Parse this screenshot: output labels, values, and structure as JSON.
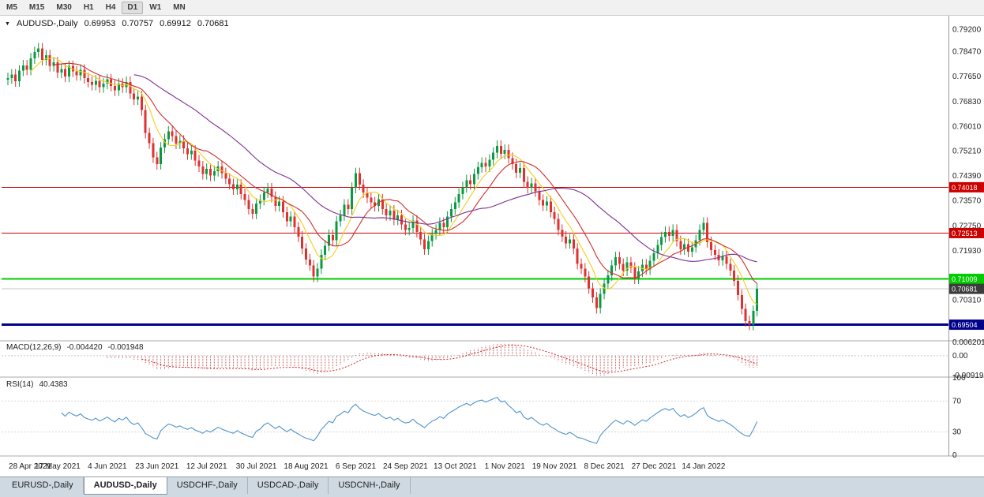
{
  "toolbar": {
    "timeframes": [
      "M5",
      "M15",
      "M30",
      "H1",
      "H4",
      "D1",
      "W1",
      "MN"
    ],
    "active": "D1"
  },
  "chart_header": {
    "collapse_icon": "▼",
    "symbol": "AUDUSD-,Daily",
    "open": "0.69953",
    "high": "0.70757",
    "low": "0.69912",
    "close": "0.70681"
  },
  "price_axis": {
    "ticks": [
      {
        "v": 0.792,
        "label": "0.79200"
      },
      {
        "v": 0.7847,
        "label": "0.78470"
      },
      {
        "v": 0.7765,
        "label": "0.77650"
      },
      {
        "v": 0.7683,
        "label": "0.76830"
      },
      {
        "v": 0.7601,
        "label": "0.76010"
      },
      {
        "v": 0.7521,
        "label": "0.75210"
      },
      {
        "v": 0.7439,
        "label": "0.74390"
      },
      {
        "v": 0.7357,
        "label": "0.73570"
      },
      {
        "v": 0.7275,
        "label": "0.72750"
      },
      {
        "v": 0.7193,
        "label": "0.71930"
      },
      {
        "v": 0.7106,
        "label": "0.71060"
      },
      {
        "v": 0.7031,
        "label": "0.70310"
      }
    ]
  },
  "levels": [
    {
      "value": 0.74018,
      "label": "0.74018",
      "color": "#cc0000",
      "lw": 1
    },
    {
      "value": 0.72513,
      "label": "0.72513",
      "color": "#cc0000",
      "lw": 1
    },
    {
      "value": 0.71009,
      "label": "0.71009",
      "color": "#00cc00",
      "lw": 2
    },
    {
      "value": 0.69504,
      "label": "0.69504",
      "color": "#00008b",
      "lw": 3
    }
  ],
  "current_price": {
    "value": 0.70681,
    "label": "0.70681",
    "bg": "#3c3c3c",
    "line_color": "#c4c4c4"
  },
  "indicators": {
    "macd": {
      "name": "MACD(12,26,9)",
      "value_main": "-0.004420",
      "value_signal": "-0.001948",
      "fast": 12,
      "slow": 26,
      "signal_period": 9,
      "ylim": [
        -0.0095,
        0.0065
      ],
      "hist_color": "#c05050",
      "signal_color": "#cc2929",
      "axis_ticks": [
        {
          "v": 0.006201,
          "label": "0.006201"
        },
        {
          "v": 0,
          "label": "0.00"
        },
        {
          "v": -0.009197,
          "label": "-0.009197"
        }
      ]
    },
    "rsi": {
      "name": "RSI(14)",
      "value": "40.4383",
      "period": 14,
      "color": "#4f94cd",
      "levels": [
        70,
        30
      ],
      "axis_ticks": [
        {
          "v": 100,
          "label": "100"
        },
        {
          "v": 70,
          "label": "70"
        },
        {
          "v": 30,
          "label": "30"
        },
        {
          "v": 0,
          "label": "0"
        }
      ]
    },
    "moving_averages": [
      {
        "period": 7,
        "color": "#f2cf1d"
      },
      {
        "period": 13,
        "color": "#cf2e2e"
      },
      {
        "period": 34,
        "color": "#7b2f90"
      }
    ]
  },
  "chart_data": {
    "type": "candlestick",
    "symbol": "AUDUSD",
    "timeframe": "Daily",
    "title": "AUDUSD-,Daily",
    "ylim": [
      0.69,
      0.796
    ],
    "wick": 0.0018,
    "up_color": "#0a9b42",
    "down_color": "#e03030",
    "last_bar": {
      "open": 0.69953,
      "high": 0.70757,
      "low": 0.69912,
      "close": 0.70681
    },
    "closes": [
      0.776,
      0.7772,
      0.775,
      0.7785,
      0.7802,
      0.7788,
      0.7825,
      0.7846,
      0.7858,
      0.782,
      0.7835,
      0.78,
      0.7812,
      0.7778,
      0.779,
      0.7765,
      0.78,
      0.7782,
      0.777,
      0.7788,
      0.776,
      0.7748,
      0.7738,
      0.7752,
      0.773,
      0.7742,
      0.7756,
      0.7735,
      0.772,
      0.7742,
      0.773,
      0.7748,
      0.771,
      0.769,
      0.77,
      0.7655,
      0.758,
      0.7546,
      0.75,
      0.7478,
      0.7532,
      0.756,
      0.7585,
      0.757,
      0.7545,
      0.7555,
      0.753,
      0.751,
      0.7522,
      0.749,
      0.747,
      0.7445,
      0.7462,
      0.744,
      0.7455,
      0.747,
      0.7448,
      0.743,
      0.7412,
      0.7395,
      0.741,
      0.738,
      0.736,
      0.733,
      0.7315,
      0.7348,
      0.736,
      0.7385,
      0.7398,
      0.737,
      0.734,
      0.7355,
      0.732,
      0.729,
      0.7305,
      0.727,
      0.724,
      0.72,
      0.7165,
      0.7145,
      0.7108,
      0.7135,
      0.718,
      0.721,
      0.7245,
      0.7228,
      0.729,
      0.731,
      0.7345,
      0.733,
      0.74,
      0.7448,
      0.741,
      0.7385,
      0.7368,
      0.7352,
      0.734,
      0.7362,
      0.733,
      0.731,
      0.7325,
      0.7295,
      0.731,
      0.728,
      0.7262,
      0.7268,
      0.7292,
      0.7255,
      0.723,
      0.7198,
      0.7225,
      0.7248,
      0.7262,
      0.7285,
      0.727,
      0.7305,
      0.733,
      0.7352,
      0.738,
      0.7402,
      0.7425,
      0.7412,
      0.7445,
      0.7468,
      0.7482,
      0.747,
      0.7492,
      0.7515,
      0.7538,
      0.7512,
      0.7525,
      0.7498,
      0.7478,
      0.745,
      0.7465,
      0.742,
      0.74,
      0.7415,
      0.7388,
      0.736,
      0.7342,
      0.7355,
      0.732,
      0.7298,
      0.7262,
      0.724,
      0.7218,
      0.723,
      0.72,
      0.715,
      0.7135,
      0.7108,
      0.707,
      0.704,
      0.7005,
      0.7052,
      0.7085,
      0.7112,
      0.7145,
      0.7172,
      0.715,
      0.7128,
      0.7155,
      0.7138,
      0.7102,
      0.7125,
      0.7148,
      0.7132,
      0.716,
      0.7185,
      0.7212,
      0.7238,
      0.7255,
      0.7242,
      0.7262,
      0.7225,
      0.7198,
      0.7215,
      0.719,
      0.7205,
      0.7228,
      0.7262,
      0.7285,
      0.7222,
      0.7195,
      0.718,
      0.7162,
      0.7175,
      0.715,
      0.7128,
      0.7095,
      0.7048,
      0.7002,
      0.6962,
      0.695,
      0.69953,
      0.70681
    ],
    "x_labels": [
      {
        "i": 0,
        "t": "28 Apr 2021"
      },
      {
        "i": 13,
        "t": "17 May 2021"
      },
      {
        "i": 26,
        "t": "4 Jun 2021"
      },
      {
        "i": 39,
        "t": "23 Jun 2021"
      },
      {
        "i": 52,
        "t": "12 Jul 2021"
      },
      {
        "i": 65,
        "t": "30 Jul 2021"
      },
      {
        "i": 78,
        "t": "18 Aug 2021"
      },
      {
        "i": 91,
        "t": "6 Sep 2021"
      },
      {
        "i": 104,
        "t": "24 Sep 2021"
      },
      {
        "i": 117,
        "t": "13 Oct 2021"
      },
      {
        "i": 130,
        "t": "1 Nov 2021"
      },
      {
        "i": 143,
        "t": "19 Nov 2021"
      },
      {
        "i": 156,
        "t": "8 Dec 2021"
      },
      {
        "i": 169,
        "t": "27 Dec 2021"
      },
      {
        "i": 182,
        "t": "14 Jan 2022"
      }
    ]
  },
  "tabs": [
    {
      "label": "EURUSD-,Daily",
      "active": false
    },
    {
      "label": "AUDUSD-,Daily",
      "active": true
    },
    {
      "label": "USDCHF-,Daily",
      "active": false
    },
    {
      "label": "USDCAD-,Daily",
      "active": false
    },
    {
      "label": "USDCNH-,Daily",
      "active": false
    }
  ]
}
